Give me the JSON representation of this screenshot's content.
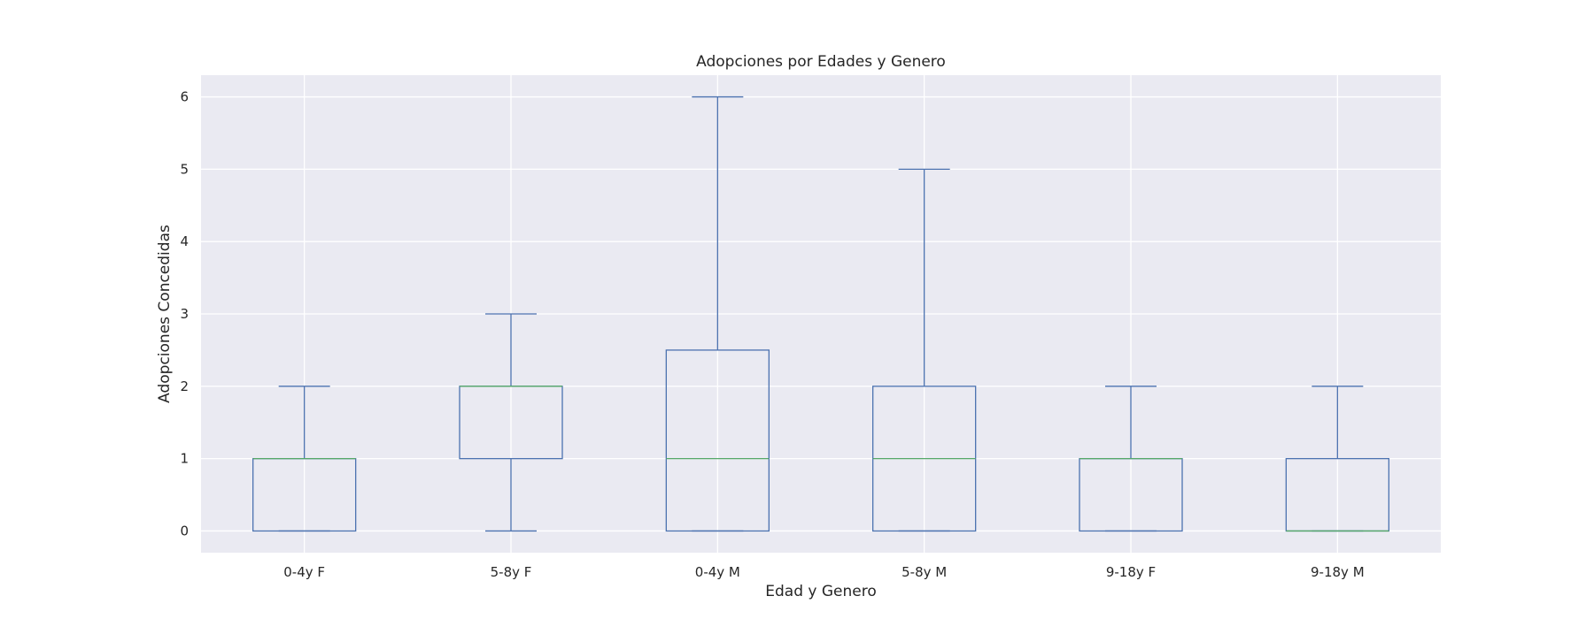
{
  "chart_data": {
    "type": "box",
    "title": "Adopciones por Edades y Genero",
    "xlabel": "Edad y Genero",
    "ylabel": "Adopciones Concedidas",
    "ylim": [
      -0.3,
      6.3
    ],
    "yticks": [
      0,
      1,
      2,
      3,
      4,
      5,
      6
    ],
    "grid": true,
    "categories": [
      "0-4y F",
      "5-8y F",
      "0-4y M",
      "5-8y M",
      "9-18y F",
      "9-18y M"
    ],
    "boxes": [
      {
        "category": "0-4y F",
        "whislo": 0,
        "q1": 0,
        "med": 1,
        "q3": 1,
        "whishi": 2
      },
      {
        "category": "5-8y F",
        "whislo": 0,
        "q1": 1,
        "med": 2,
        "q3": 2,
        "whishi": 3
      },
      {
        "category": "0-4y M",
        "whislo": 0,
        "q1": 0,
        "med": 1,
        "q3": 2.5,
        "whishi": 6
      },
      {
        "category": "5-8y M",
        "whislo": 0,
        "q1": 0,
        "med": 1,
        "q3": 2,
        "whishi": 5
      },
      {
        "category": "9-18y F",
        "whislo": 0,
        "q1": 0,
        "med": 1,
        "q3": 1,
        "whishi": 2
      },
      {
        "category": "9-18y M",
        "whislo": 0,
        "q1": 0,
        "med": 0,
        "q3": 1,
        "whishi": 2
      }
    ],
    "colors": {
      "background": "#eaeaf2",
      "grid": "#ffffff",
      "box": "#4c72b0",
      "median": "#55a868",
      "text": "#262626"
    }
  }
}
